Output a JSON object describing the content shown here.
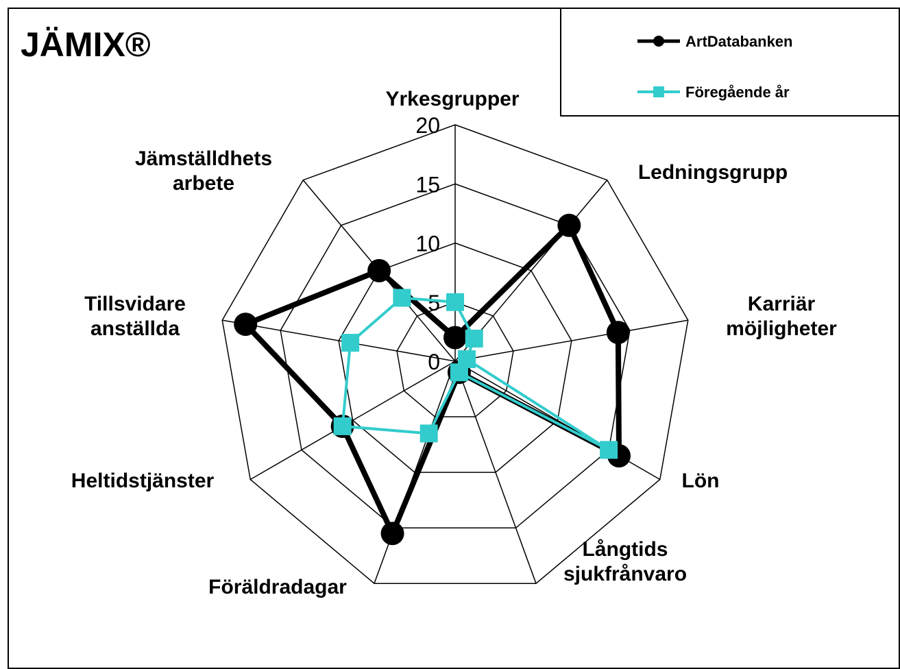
{
  "chart_data": {
    "type": "radar",
    "title": "JÄMIX®",
    "categories": [
      "Yrkesgrupper",
      "Ledningsgrupp",
      "Karriär\nmöjligheter",
      "Lön",
      "Långtids\nsjukfrånvaro",
      "Föräldradagar",
      "Heltidstjänster",
      "Tillsvidare\nanställda",
      "Jämställdhets\narbete"
    ],
    "series": [
      {
        "name": "ArtDatabanken",
        "color": "#000000",
        "values": [
          2,
          15,
          14,
          16,
          1,
          15.5,
          11,
          18,
          10
        ]
      },
      {
        "name": "Föregående år",
        "color": "#33cccc",
        "values": [
          5,
          2.5,
          1,
          15,
          1,
          6.5,
          11,
          9,
          7
        ]
      }
    ],
    "ylim": [
      0,
      20
    ],
    "yticks": [
      0,
      5,
      10,
      15,
      20
    ],
    "legend": "top-right"
  }
}
